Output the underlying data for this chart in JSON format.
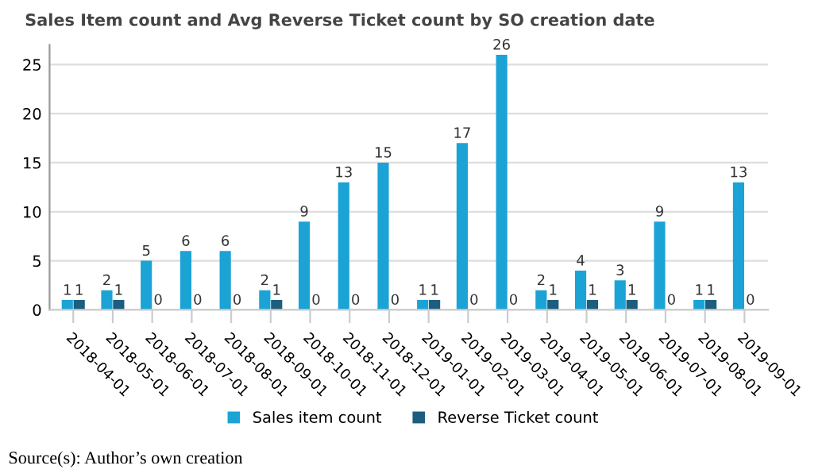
{
  "chart_data": {
    "type": "bar",
    "title": "Sales Item count and Avg Reverse Ticket count by SO creation date",
    "categories": [
      "2018-04-01",
      "2018-05-01",
      "2018-06-01",
      "2018-07-01",
      "2018-08-01",
      "2018-09-01",
      "2018-10-01",
      "2018-11-01",
      "2018-12-01",
      "2019-01-01",
      "2019-02-01",
      "2019-03-01",
      "2019-04-01",
      "2019-05-01",
      "2019-06-01",
      "2019-07-01",
      "2019-08-01",
      "2019-09-01"
    ],
    "series": [
      {
        "name": "Sales item count",
        "color": "#1ba3d6",
        "values": [
          1,
          2,
          5,
          6,
          6,
          2,
          9,
          13,
          15,
          1,
          17,
          26,
          2,
          4,
          3,
          9,
          1,
          13
        ]
      },
      {
        "name": "Reverse Ticket count",
        "color": "#1d5d7e",
        "values": [
          1,
          1,
          0,
          0,
          0,
          1,
          0,
          0,
          0,
          1,
          0,
          0,
          1,
          1,
          1,
          0,
          1,
          0
        ]
      }
    ],
    "ylim": [
      0,
      27
    ],
    "yticks": [
      0,
      5,
      10,
      15,
      20,
      25
    ],
    "grid": "y",
    "legend": "bottom",
    "data_labels": true,
    "annotations": [
      "Source(s): Author’s own creation"
    ]
  }
}
